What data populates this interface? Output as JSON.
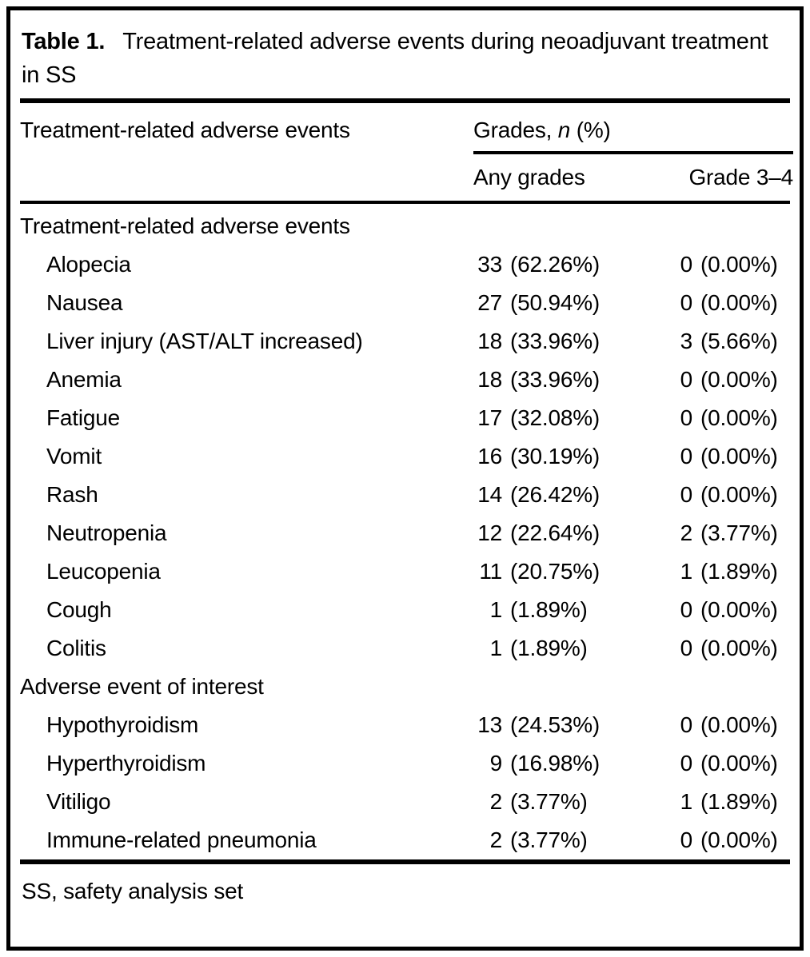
{
  "table": {
    "label": "Table 1.",
    "title": "Treatment-related adverse events during neoadjuvant treatment in SS",
    "stub_header": "Treatment-related adverse events",
    "grades_header": {
      "prefix": "Grades, ",
      "n": "n",
      "suffix": " (%)"
    },
    "subheaders": {
      "any": "Any grades",
      "g34": "Grade 3–4"
    },
    "sections": [
      {
        "name": "Treatment-related adverse events",
        "rows": [
          {
            "event": "Alopecia",
            "any_n": "33",
            "any_pct": "(62.26%)",
            "g34_n": "0",
            "g34_pct": "(0.00%)"
          },
          {
            "event": "Nausea",
            "any_n": "27",
            "any_pct": "(50.94%)",
            "g34_n": "0",
            "g34_pct": "(0.00%)"
          },
          {
            "event": "Liver injury (AST/ALT increased)",
            "any_n": "18",
            "any_pct": "(33.96%)",
            "g34_n": "3",
            "g34_pct": "(5.66%)"
          },
          {
            "event": "Anemia",
            "any_n": "18",
            "any_pct": "(33.96%)",
            "g34_n": "0",
            "g34_pct": "(0.00%)"
          },
          {
            "event": "Fatigue",
            "any_n": "17",
            "any_pct": "(32.08%)",
            "g34_n": "0",
            "g34_pct": "(0.00%)"
          },
          {
            "event": "Vomit",
            "any_n": "16",
            "any_pct": "(30.19%)",
            "g34_n": "0",
            "g34_pct": "(0.00%)"
          },
          {
            "event": "Rash",
            "any_n": "14",
            "any_pct": "(26.42%)",
            "g34_n": "0",
            "g34_pct": "(0.00%)"
          },
          {
            "event": "Neutropenia",
            "any_n": "12",
            "any_pct": "(22.64%)",
            "g34_n": "2",
            "g34_pct": "(3.77%)"
          },
          {
            "event": "Leucopenia",
            "any_n": "11",
            "any_pct": "(20.75%)",
            "g34_n": "1",
            "g34_pct": "(1.89%)"
          },
          {
            "event": "Cough",
            "any_n": "1",
            "any_pct": "(1.89%)",
            "g34_n": "0",
            "g34_pct": "(0.00%)"
          },
          {
            "event": "Colitis",
            "any_n": "1",
            "any_pct": "(1.89%)",
            "g34_n": "0",
            "g34_pct": "(0.00%)"
          }
        ]
      },
      {
        "name": "Adverse event of interest",
        "rows": [
          {
            "event": "Hypothyroidism",
            "any_n": "13",
            "any_pct": "(24.53%)",
            "g34_n": "0",
            "g34_pct": "(0.00%)"
          },
          {
            "event": "Hyperthyroidism",
            "any_n": "9",
            "any_pct": "(16.98%)",
            "g34_n": "0",
            "g34_pct": "(0.00%)"
          },
          {
            "event": "Vitiligo",
            "any_n": "2",
            "any_pct": "(3.77%)",
            "g34_n": "1",
            "g34_pct": "(1.89%)"
          },
          {
            "event": "Immune-related pneumonia",
            "any_n": "2",
            "any_pct": "(3.77%)",
            "g34_n": "0",
            "g34_pct": "(0.00%)"
          }
        ]
      }
    ],
    "footnote": "SS, safety analysis set",
    "colors": {
      "text": "#000000",
      "background": "#ffffff",
      "rule": "#000000"
    }
  }
}
